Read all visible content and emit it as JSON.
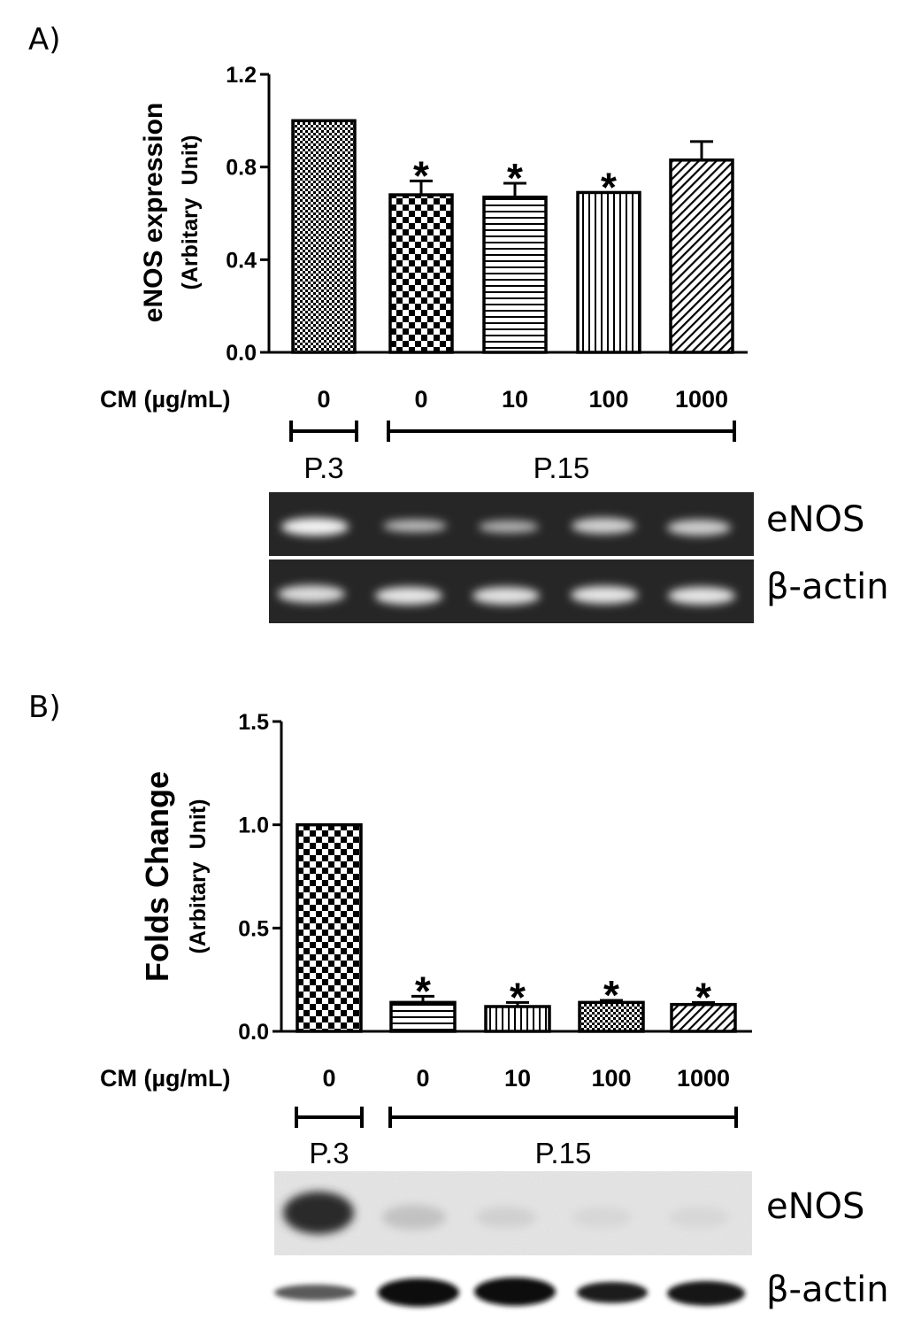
{
  "chart_data": [
    {
      "panel": "A)",
      "type": "bar",
      "ylabel": "eNOS expression",
      "ylabel_sub": "(Arbitary  Unit)",
      "ylim": [
        0,
        1.2
      ],
      "yticks": [
        "0.0",
        "0.4",
        "0.8",
        "1.2"
      ],
      "xlabel_prefix": "CM (µg/mL)",
      "categories": [
        "0",
        "0",
        "10",
        "100",
        "1000"
      ],
      "values": [
        1.0,
        0.68,
        0.67,
        0.69,
        0.83
      ],
      "errors": [
        0.0,
        0.06,
        0.06,
        0.0,
        0.08
      ],
      "significance": [
        "",
        "*",
        "*",
        "*",
        ""
      ],
      "patterns": [
        "fine-check",
        "coarse-check",
        "horizontal",
        "vertical",
        "diagonal"
      ],
      "groups": [
        {
          "label": "P.3",
          "from": 0,
          "to": 0
        },
        {
          "label": "P.15",
          "from": 1,
          "to": 4
        }
      ],
      "blot_labels": [
        "eNOS",
        "β-actin"
      ],
      "blot_style": "gel"
    },
    {
      "panel": "B)",
      "type": "bar",
      "ylabel": "Folds Change",
      "ylabel_sub": "(Arbitary  Unit)",
      "ylim": [
        0,
        1.5
      ],
      "yticks": [
        "0.0",
        "0.5",
        "1.0",
        "1.5"
      ],
      "xlabel_prefix": "CM (µg/mL)",
      "categories": [
        "0",
        "0",
        "10",
        "100",
        "1000"
      ],
      "values": [
        1.0,
        0.14,
        0.12,
        0.14,
        0.13
      ],
      "errors": [
        0.0,
        0.03,
        0.02,
        0.01,
        0.01
      ],
      "significance": [
        "",
        "*",
        "*",
        "*",
        "*"
      ],
      "patterns": [
        "coarse-check",
        "horizontal",
        "vertical",
        "fine-check",
        "diagonal"
      ],
      "groups": [
        {
          "label": "P.3",
          "from": 0,
          "to": 0
        },
        {
          "label": "P.15",
          "from": 1,
          "to": 4
        }
      ],
      "blot_labels": [
        "eNOS",
        "β-actin"
      ],
      "blot_style": "western"
    }
  ],
  "colors": {
    "bar_stroke": "#000000",
    "gel_background": "#262626",
    "western_background": "#e6e6e6"
  }
}
